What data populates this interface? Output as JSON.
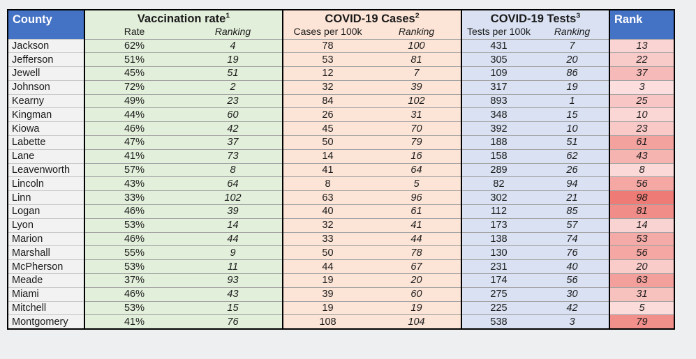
{
  "header": {
    "county_label": "County",
    "rank_label": "Rank",
    "groups": [
      {
        "title": "Vaccination rate",
        "superscript": "1",
        "sub_cols": [
          "Rate",
          "Ranking"
        ]
      },
      {
        "title": "COVID-19 Cases",
        "superscript": "2",
        "sub_cols": [
          "Cases per 100k",
          "Ranking"
        ]
      },
      {
        "title": "COVID-19 Tests",
        "superscript": "3",
        "sub_cols": [
          "Tests per 100k",
          "Ranking"
        ]
      }
    ]
  },
  "colors": {
    "page_bg": "#edeff1",
    "header_bg": "#4472c4",
    "header_text": "#ffffff",
    "vaccination_group_bg": "#e2efda",
    "cases_group_bg": "#fce4d6",
    "tests_group_bg": "#d9e1f2",
    "county_cell_bg": "#f2f2f2",
    "rank_scale_min_color": "#fbdedd",
    "rank_scale_max_color": "#ee7b75"
  },
  "rank_scale": {
    "min": 3,
    "max": 98
  },
  "chart_data": {
    "type": "table",
    "columns": [
      "County",
      "Vaccination rate - Rate",
      "Vaccination rate - Ranking",
      "COVID-19 Cases - Cases per 100k",
      "COVID-19 Cases - Ranking",
      "COVID-19 Tests - Tests per 100k",
      "COVID-19 Tests - Ranking",
      "Rank"
    ],
    "rows": [
      [
        "Jackson",
        "62%",
        4,
        78,
        100,
        431,
        7,
        13
      ],
      [
        "Jefferson",
        "51%",
        19,
        53,
        81,
        305,
        20,
        22
      ],
      [
        "Jewell",
        "45%",
        51,
        12,
        7,
        109,
        86,
        37
      ],
      [
        "Johnson",
        "72%",
        2,
        32,
        39,
        317,
        19,
        3
      ],
      [
        "Kearny",
        "49%",
        23,
        84,
        102,
        893,
        1,
        25
      ],
      [
        "Kingman",
        "44%",
        60,
        26,
        31,
        348,
        15,
        10
      ],
      [
        "Kiowa",
        "46%",
        42,
        45,
        70,
        392,
        10,
        23
      ],
      [
        "Labette",
        "47%",
        37,
        50,
        79,
        188,
        51,
        61
      ],
      [
        "Lane",
        "41%",
        73,
        14,
        16,
        158,
        62,
        43
      ],
      [
        "Leavenworth",
        "57%",
        8,
        41,
        64,
        289,
        26,
        8
      ],
      [
        "Lincoln",
        "43%",
        64,
        8,
        5,
        82,
        94,
        56
      ],
      [
        "Linn",
        "33%",
        102,
        63,
        96,
        302,
        21,
        98
      ],
      [
        "Logan",
        "46%",
        39,
        40,
        61,
        112,
        85,
        81
      ],
      [
        "Lyon",
        "53%",
        14,
        32,
        41,
        173,
        57,
        14
      ],
      [
        "Marion",
        "46%",
        44,
        33,
        44,
        138,
        74,
        53
      ],
      [
        "Marshall",
        "55%",
        9,
        50,
        78,
        130,
        76,
        56
      ],
      [
        "McPherson",
        "53%",
        11,
        44,
        67,
        231,
        40,
        20
      ],
      [
        "Meade",
        "37%",
        93,
        19,
        20,
        174,
        56,
        63
      ],
      [
        "Miami",
        "46%",
        43,
        39,
        60,
        275,
        30,
        31
      ],
      [
        "Mitchell",
        "53%",
        15,
        19,
        19,
        225,
        42,
        5
      ],
      [
        "Montgomery",
        "41%",
        76,
        108,
        104,
        538,
        3,
        79
      ]
    ]
  }
}
